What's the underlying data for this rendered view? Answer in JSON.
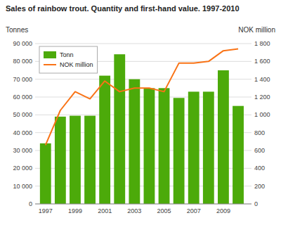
{
  "chart_data": {
    "type": "bar",
    "title": "Sales of rainbow trout. Quantity and first-hand value. 1997-2010",
    "ylabel": "Tonnes",
    "y2label": "NOK million",
    "x": [
      1997,
      1998,
      1999,
      2000,
      2001,
      2002,
      2003,
      2004,
      2005,
      2006,
      2007,
      2008,
      2009,
      2010
    ],
    "xlim": [
      1996.3,
      2010.9
    ],
    "xticks": [
      1997,
      1999,
      2001,
      2003,
      2005,
      2007,
      2009
    ],
    "ylim": [
      0,
      90000
    ],
    "yticks": [
      0,
      {
        "value": 10000,
        "label": "10 000"
      },
      {
        "value": 20000,
        "label": "20 000"
      },
      {
        "value": 30000,
        "label": "30 000"
      },
      {
        "value": 40000,
        "label": "40 000"
      },
      {
        "value": 50000,
        "label": "50 000"
      },
      {
        "value": 60000,
        "label": "60 000"
      },
      {
        "value": 70000,
        "label": "70 000"
      },
      {
        "value": 80000,
        "label": "80 000"
      },
      {
        "value": 90000,
        "label": "90 000"
      }
    ],
    "y2lim": [
      0,
      1800
    ],
    "y2ticks": [
      0,
      200,
      400,
      600,
      800,
      {
        "value": 1000,
        "label": "1 000"
      },
      {
        "value": 1200,
        "label": "1 200"
      },
      {
        "value": 1400,
        "label": "1 400"
      },
      {
        "value": 1600,
        "label": "1 600"
      },
      {
        "value": 1800,
        "label": "1 800"
      }
    ],
    "grid": true,
    "legend": "top-left",
    "series": [
      {
        "name": "Tonn",
        "type": "bar",
        "color": "#4caa0a",
        "values": [
          34000,
          49000,
          49500,
          49500,
          72000,
          84000,
          70000,
          65000,
          65000,
          59500,
          63000,
          63000,
          75000,
          55000
        ]
      },
      {
        "name": "NOK million",
        "type": "line",
        "axis": "y2",
        "color": "#f97316",
        "values": [
          660,
          1050,
          1260,
          1180,
          1380,
          1260,
          1300,
          1300,
          1260,
          1580,
          1580,
          1600,
          1720,
          1740
        ]
      }
    ]
  }
}
